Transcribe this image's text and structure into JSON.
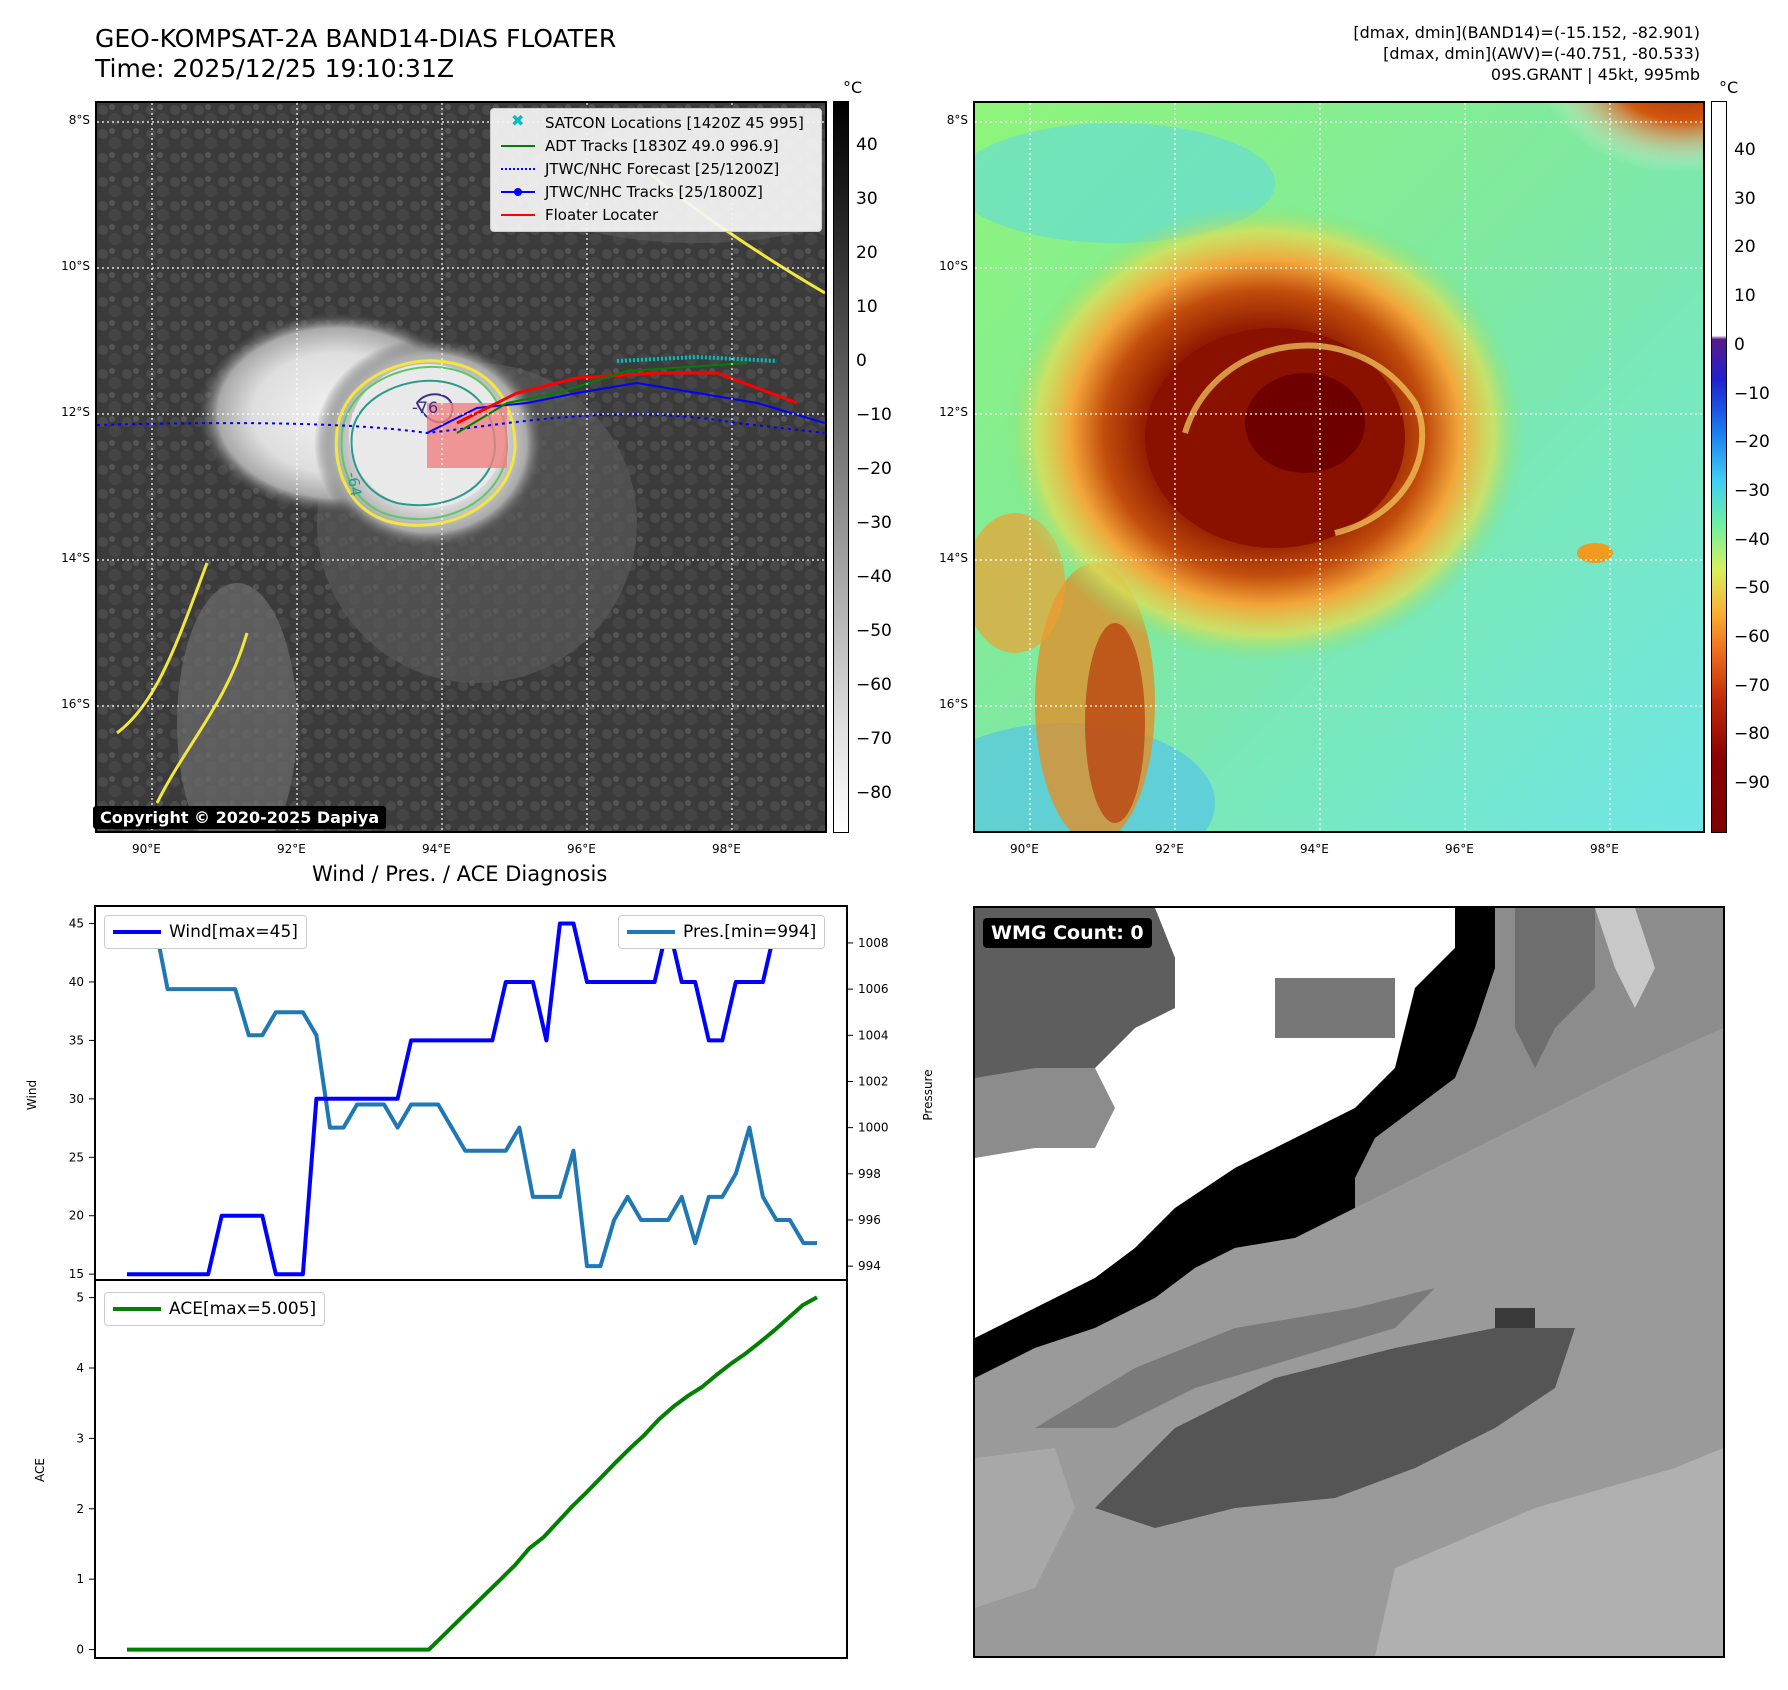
{
  "header": {
    "title_line1": "GEO-KOMPSAT-2A BAND14-DIAS FLOATER",
    "title_line2": "Time: 2025/12/25 19:10:31Z",
    "stats_line1": "[dmax, dmin](BAND14)=(-15.152, -82.901)",
    "stats_line2": "[dmax, dmin](AWV)=(-40.751, -80.533)",
    "stats_line3": "09S.GRANT | 45kt, 995mb"
  },
  "ir_panel": {
    "lat_ticks": [
      "8°S",
      "10°S",
      "12°S",
      "14°S",
      "16°S"
    ],
    "lon_ticks": [
      "90°E",
      "92°E",
      "94°E",
      "96°E",
      "98°E"
    ],
    "copyright": "Copyright © 2020-2025 Dapiya",
    "contour_labels": [
      "-76",
      "-64"
    ],
    "legend": [
      {
        "label": "SATCON Locations [1420Z 45 995]",
        "color": "#00bfbf"
      },
      {
        "label": "ADT Tracks [1830Z 49.0 996.9]",
        "color": "#008000"
      },
      {
        "label": "JTWC/NHC Forecast [25/1200Z]",
        "color": "#0000ff"
      },
      {
        "label": "JTWC/NHC Tracks [25/1800Z]",
        "color": "#0000ff"
      },
      {
        "label": "Floater Locater",
        "color": "#ff0000"
      }
    ],
    "colorbar_unit": "°C",
    "colorbar_ticks": [
      "40",
      "30",
      "20",
      "10",
      "0",
      "−10",
      "−20",
      "−30",
      "−40",
      "−50",
      "−60",
      "−70",
      "−80"
    ]
  },
  "color_panel": {
    "lat_ticks": [
      "8°S",
      "10°S",
      "12°S",
      "14°S",
      "16°S"
    ],
    "lon_ticks": [
      "90°E",
      "92°E",
      "94°E",
      "96°E",
      "98°E"
    ],
    "colorbar_unit": "°C",
    "colorbar_ticks": [
      "40",
      "30",
      "20",
      "10",
      "0",
      "−10",
      "−20",
      "−30",
      "−40",
      "−50",
      "−60",
      "−70",
      "−80",
      "−90"
    ]
  },
  "wv_panel": {
    "badge": "WMG Count: 0"
  },
  "chart_data": [
    {
      "type": "line",
      "title": "Wind / Pres. / ACE Diagnosis",
      "ylabel": "Wind",
      "ylabel_right": "Pressure",
      "ylim": [
        14.5,
        46.5
      ],
      "ylim_right": [
        993.4,
        1009.6
      ],
      "yticks": [
        15,
        20,
        25,
        30,
        35,
        40,
        45
      ],
      "yticks_right": [
        994,
        996,
        998,
        1000,
        1002,
        1004,
        1006,
        1008
      ],
      "series": [
        {
          "name": "Wind[max=45]",
          "axis": "left",
          "color": "#0000ff",
          "values": [
            15,
            15,
            15,
            15,
            15,
            15,
            15,
            20,
            20,
            20,
            20,
            15,
            15,
            15,
            30,
            30,
            30,
            30,
            30,
            30,
            30,
            35,
            35,
            35,
            35,
            35,
            35,
            35,
            40,
            40,
            40,
            35,
            45,
            45,
            40,
            40,
            40,
            40,
            40,
            40,
            45,
            40,
            40,
            35,
            35,
            40,
            40,
            40,
            45,
            45,
            45,
            45
          ]
        },
        {
          "name": "Pres.[min=994]",
          "axis": "right",
          "color": "#1f77b4",
          "values": [
            1009,
            1009,
            1009,
            1006,
            1006,
            1006,
            1006,
            1006,
            1006,
            1004,
            1004,
            1005,
            1005,
            1005,
            1004,
            1000,
            1000,
            1001,
            1001,
            1001,
            1000,
            1001,
            1001,
            1001,
            1000,
            999,
            999,
            999,
            999,
            1000,
            997,
            997,
            997,
            999,
            994,
            994,
            996,
            997,
            996,
            996,
            996,
            997,
            995,
            997,
            997,
            998,
            1000,
            997,
            996,
            996,
            995,
            995
          ]
        }
      ]
    },
    {
      "type": "line",
      "ylabel": "ACE",
      "ylim": [
        -0.12,
        5.25
      ],
      "yticks": [
        0,
        1,
        2,
        3,
        4,
        5
      ],
      "series": [
        {
          "name": "ACE[max=5.005]",
          "color": "#008000",
          "values": [
            0,
            0,
            0,
            0,
            0,
            0,
            0,
            0,
            0,
            0,
            0,
            0,
            0,
            0,
            0,
            0,
            0,
            0,
            0,
            0,
            0,
            0,
            0.2,
            0.4,
            0.6,
            0.8,
            1.0,
            1.2,
            1.44,
            1.6,
            1.82,
            2.04,
            2.24,
            2.45,
            2.66,
            2.86,
            3.05,
            3.27,
            3.45,
            3.6,
            3.73,
            3.9,
            4.06,
            4.2,
            4.36,
            4.53,
            4.71,
            4.89,
            5.005
          ]
        }
      ]
    }
  ]
}
